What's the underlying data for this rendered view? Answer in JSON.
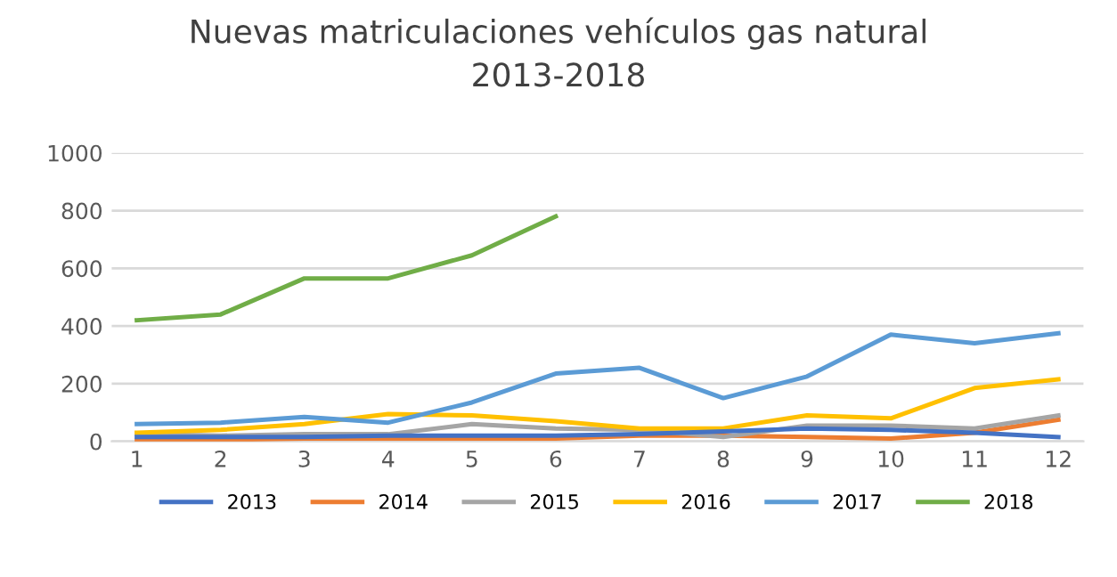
{
  "chart_data": {
    "type": "line",
    "title": "Nuevas matriculaciones vehículos gas natural\n2013-2018",
    "categories": [
      "1",
      "2",
      "3",
      "4",
      "5",
      "6",
      "7",
      "8",
      "9",
      "10",
      "11",
      "12"
    ],
    "series": [
      {
        "name": "2013",
        "color": "#4472c4",
        "values": [
          15,
          15,
          15,
          20,
          20,
          20,
          25,
          35,
          45,
          40,
          30,
          15
        ]
      },
      {
        "name": "2014",
        "color": "#ed7d31",
        "values": [
          5,
          5,
          10,
          10,
          10,
          10,
          20,
          20,
          15,
          10,
          30,
          75
        ]
      },
      {
        "name": "2015",
        "color": "#a5a5a5",
        "values": [
          25,
          20,
          25,
          25,
          60,
          45,
          40,
          15,
          55,
          55,
          45,
          90
        ]
      },
      {
        "name": "2016",
        "color": "#ffc000",
        "values": [
          30,
          40,
          60,
          95,
          90,
          70,
          45,
          45,
          90,
          80,
          185,
          215
        ]
      },
      {
        "name": "2017",
        "color": "#5b9bd5",
        "values": [
          60,
          65,
          85,
          65,
          135,
          235,
          255,
          150,
          225,
          370,
          340,
          375
        ]
      },
      {
        "name": "2018",
        "color": "#70ad47",
        "values": [
          420,
          440,
          565,
          565,
          645,
          780,
          null,
          null,
          null,
          null,
          null,
          null
        ]
      }
    ],
    "ylim": [
      0,
      1000
    ],
    "yticks": [
      0,
      200,
      400,
      600,
      800,
      1000
    ],
    "grid": "y",
    "legend": "bottom",
    "marker": "none",
    "line_style": "solid"
  }
}
